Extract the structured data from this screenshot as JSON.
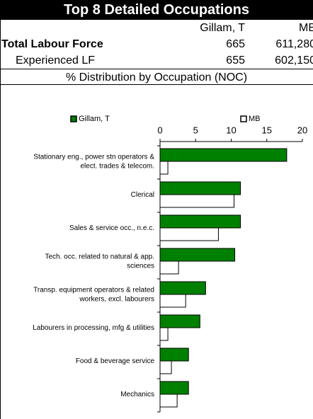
{
  "title": "Top 8 Detailed Occupations",
  "table": {
    "header": [
      "",
      "Gillam, T",
      "MB"
    ],
    "rows": [
      [
        "Total Labour Force",
        "665",
        "611,280"
      ],
      [
        "Experienced LF",
        "655",
        "602,150"
      ]
    ]
  },
  "subtitle": "% Distribution by Occupation (NOC)",
  "chart_data": {
    "type": "hbar",
    "categories": [
      "Stationary eng., power stn operators &\nelect. trades & telecom.",
      "Clerical",
      "Sales & service occ., n.e.c.",
      "Tech. occ. related to natural & app.\nsciences",
      "Transp. equipment operators & related\nworkers, excl. labourers",
      "Labourers in processing, mfg & utilities",
      "Food & beverage service",
      "Mechanics"
    ],
    "series": [
      {
        "name": "Gillam, T",
        "color": "#008000",
        "values": [
          17.8,
          11.3,
          11.3,
          10.5,
          6.4,
          5.6,
          4.0,
          4.0
        ]
      },
      {
        "name": "MB",
        "color": "#ffffff",
        "values": [
          1.1,
          10.4,
          8.2,
          2.6,
          3.6,
          1.1,
          1.6,
          2.4
        ]
      }
    ],
    "xlim": [
      0,
      20
    ],
    "xticks": [
      0,
      5,
      10,
      15,
      20
    ],
    "legend": "top"
  }
}
